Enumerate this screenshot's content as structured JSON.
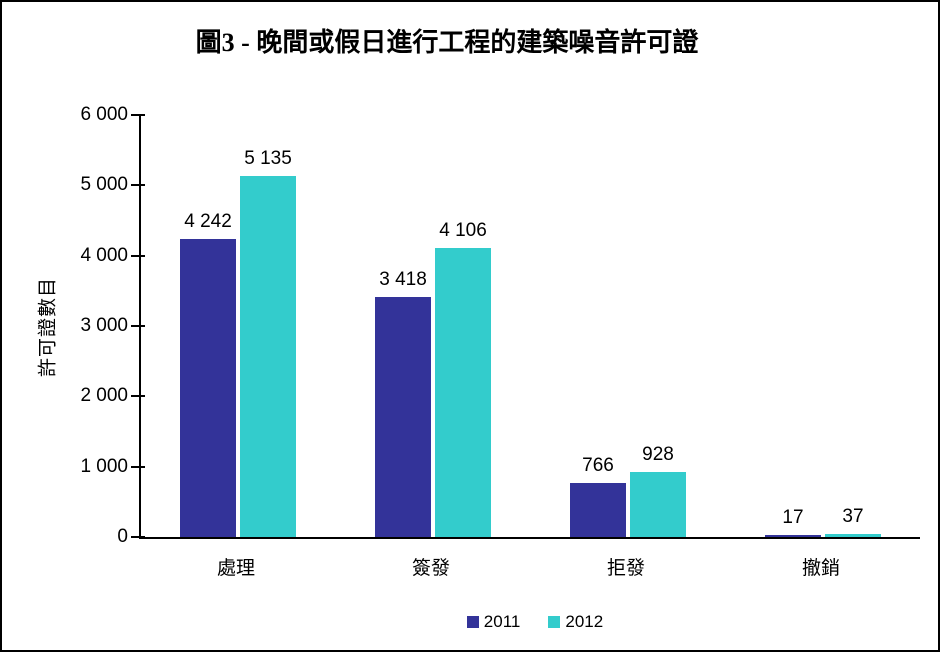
{
  "chart_data": {
    "type": "bar",
    "title": "圖3 - 晚間或假日進行工程的建築噪音許可證",
    "xlabel": "",
    "ylabel": "許可證數目",
    "categories": [
      "處理",
      "簽發",
      "拒發",
      "撤銷"
    ],
    "series": [
      {
        "name": "2011",
        "color": "#333399",
        "values": [
          4242,
          3418,
          766,
          17
        ],
        "labels": [
          "4 242",
          "3 418",
          "766",
          "17"
        ]
      },
      {
        "name": "2012",
        "color": "#33CCCC",
        "values": [
          5135,
          4106,
          928,
          37
        ],
        "labels": [
          "5 135",
          "4 106",
          "928",
          "37"
        ]
      }
    ],
    "ylim": [
      0,
      6000
    ],
    "yticks": [
      0,
      1000,
      2000,
      3000,
      4000,
      5000,
      6000
    ],
    "ytick_labels": [
      "0",
      "1 000",
      "2 000",
      "3 000",
      "4 000",
      "5 000",
      "6 000"
    ],
    "grid": false,
    "legend_position": "bottom",
    "axis_color": "#000000",
    "background_color": "#ffffff"
  }
}
